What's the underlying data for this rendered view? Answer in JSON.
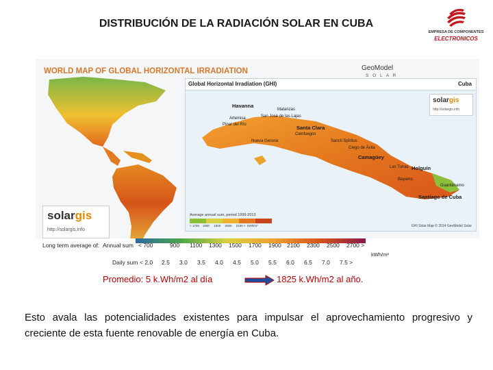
{
  "slide": {
    "title": "DISTRIBUCIÓN DE LA RADIACIÓN SOLAR EN CUBA",
    "logo": {
      "icon": "company-logo-icon",
      "line1": "EMPRESA DE COMPONENTES",
      "line2": "ELECTRONICOS",
      "color": "#c4161c"
    }
  },
  "map": {
    "title": "WORLD MAP OF GLOBAL HORIZONTAL IRRADIATION",
    "brand": "GeoModel",
    "brand_sub": "S O L A R",
    "cuba_title": "Global Horizontal Irradiation (GHI)",
    "country": "Cuba",
    "cities": [
      "Havanna",
      "Matanzas",
      "Artemisa",
      "San José de las Lajas",
      "Pinar del Río",
      "Santa Clara",
      "Cienfuegos",
      "Nueva Gerona",
      "Sancti Spíritus",
      "Ciego de Ávila",
      "Camagüey",
      "Las Tunas",
      "Holguín",
      "Bayamo",
      "Guantánamo",
      "Santiago de Cuba"
    ],
    "solargis_small": {
      "name_a": "solar",
      "name_b": "gis",
      "url": "http://solargis.info"
    },
    "small_legend_title": "Average annual sum, period 1999-2013",
    "small_legend_labels": [
      "< 1700",
      "1800",
      "1900",
      "2000",
      "2100 >",
      "kWh/m²"
    ],
    "credit": "GHI Solar Map © 2014 GeoModel Solar",
    "solargis_big": {
      "name_a": "solar",
      "name_b": "gis",
      "url": "http://solargis.info"
    },
    "scale": {
      "long_term_label": "Long term average of:",
      "annual_label": "Annual sum",
      "daily_label": "Daily sum",
      "annual_ticks": [
        "< 700",
        "900",
        "1100",
        "1300",
        "1500",
        "1700",
        "1900",
        "2100",
        "2300",
        "2500",
        "2700 >"
      ],
      "daily_ticks": [
        "< 2.0",
        "2.5",
        "3.0",
        "3.5",
        "4.0",
        "4.5",
        "5.0",
        "5.5",
        "6.0",
        "6.5",
        "7.0",
        "7.5 >"
      ],
      "unit": "kWh/m²"
    }
  },
  "summary": {
    "daily": "Promedio: 5 k.Wh/m2 al día",
    "annual": "1825 k.Wh/m2 al año.",
    "arrow_color": "#1f4e9c"
  },
  "body": "Esto avala las potencialidades existentes para impulsar el aprovechamiento progresivo y creciente de esta fuente renovable de energía en Cuba."
}
